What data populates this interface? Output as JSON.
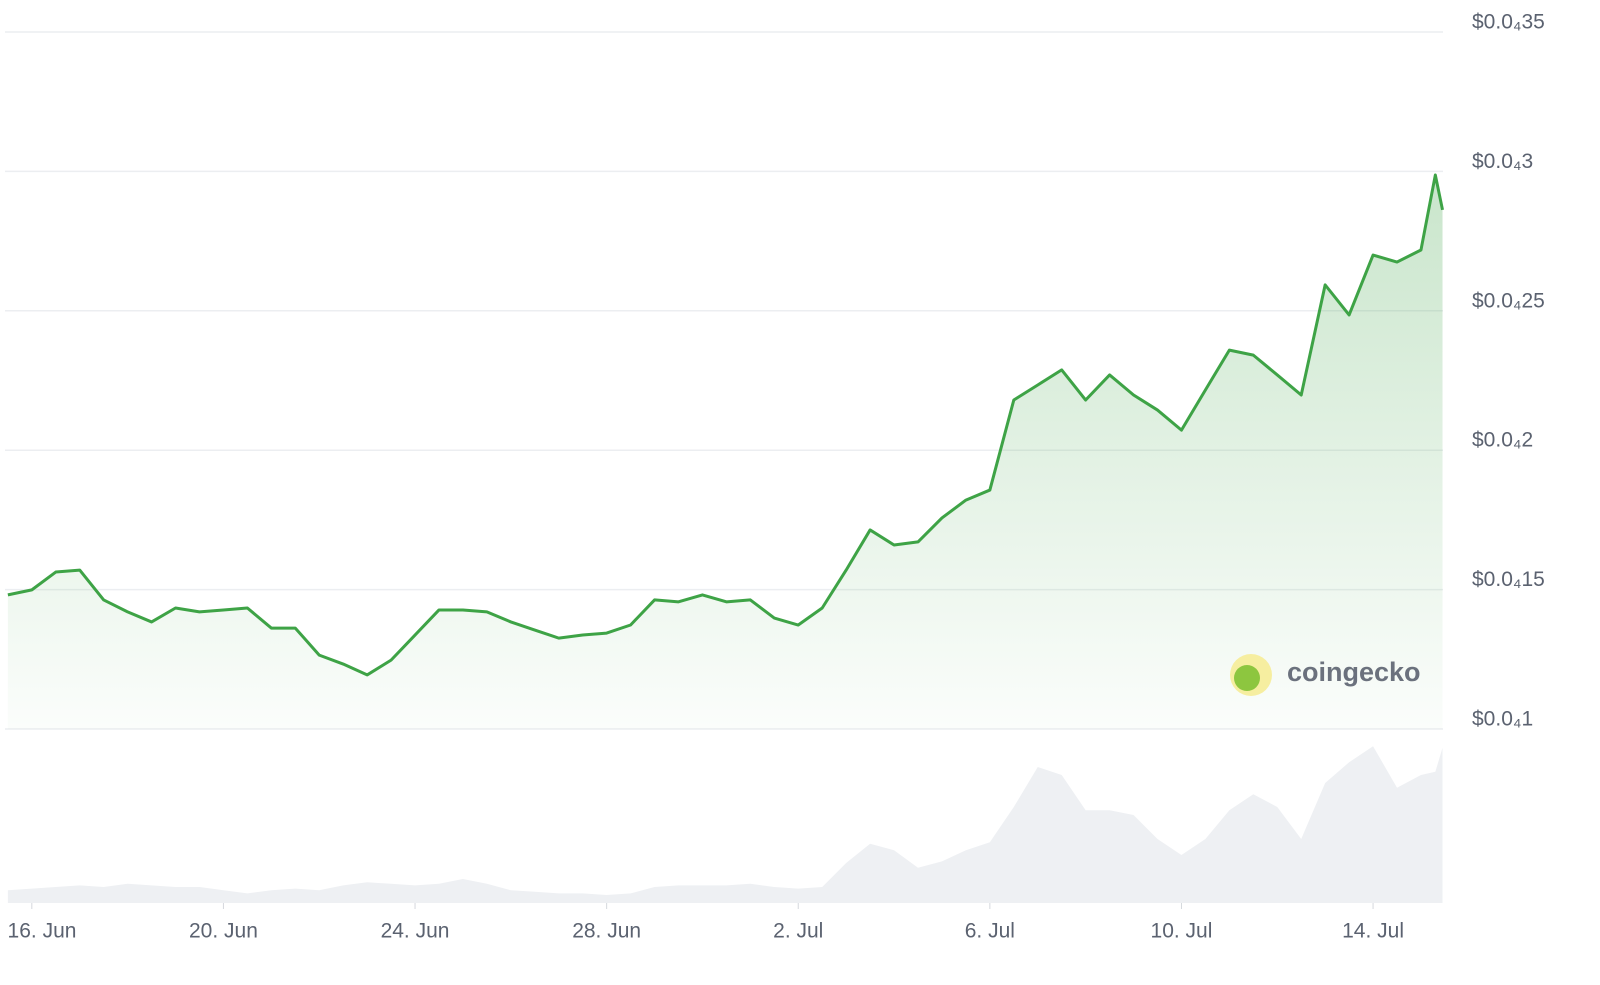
{
  "chart_data": {
    "type": "line",
    "x": [
      -0.5,
      0,
      0.5,
      1,
      1.5,
      2,
      2.5,
      3,
      3.5,
      4,
      4.5,
      5,
      5.5,
      6,
      6.5,
      7,
      7.5,
      8,
      8.5,
      9,
      9.5,
      10,
      10.5,
      11,
      11.5,
      12,
      12.5,
      13,
      13.5,
      14,
      14.5,
      15,
      15.5,
      16,
      16.5,
      17,
      17.5,
      18,
      18.5,
      19,
      19.5,
      20,
      20.5,
      21,
      21.5,
      22,
      22.5,
      23,
      23.5,
      24,
      24.5,
      25,
      25.5,
      26,
      26.5,
      27,
      27.5,
      28,
      28.5,
      29,
      29.3,
      29.45
    ],
    "series": [
      {
        "color": "#3ea346",
        "values": [
          1.481e-05,
          1.499e-05,
          1.563e-05,
          1.57e-05,
          1.463e-05,
          1.42e-05,
          1.384e-05,
          1.434e-05,
          1.42e-05,
          1.427e-05,
          1.434e-05,
          1.362e-05,
          1.362e-05,
          1.265e-05,
          1.233e-05,
          1.194e-05,
          1.247e-05,
          1.337e-05,
          1.427e-05,
          1.427e-05,
          1.42e-05,
          1.384e-05,
          1.355e-05,
          1.326e-05,
          1.337e-05,
          1.344e-05,
          1.373e-05,
          1.463e-05,
          1.456e-05,
          1.481e-05,
          1.456e-05,
          1.463e-05,
          1.398e-05,
          1.373e-05,
          1.434e-05,
          1.57e-05,
          1.714e-05,
          1.66e-05,
          1.671e-05,
          1.757e-05,
          1.821e-05,
          1.857e-05,
          2.18e-05,
          2.234e-05,
          2.288e-05,
          2.18e-05,
          2.27e-05,
          2.198e-05,
          2.144e-05,
          2.072e-05,
          2.216e-05,
          2.359e-05,
          2.341e-05,
          2.27e-05,
          2.198e-05,
          2.593e-05,
          2.485e-05,
          2.7e-05,
          2.675e-05,
          2.718e-05,
          2.987e-05,
          2.862e-05
        ]
      },
      {
        "axis": "y2",
        "color": "#eef0f3",
        "values": [
          8,
          9,
          10,
          11,
          10,
          12,
          11,
          10,
          10,
          8,
          6,
          8,
          9,
          8,
          11,
          13,
          12,
          11,
          12,
          15,
          12,
          8,
          7,
          6,
          6,
          5,
          6,
          10,
          11,
          11,
          11,
          12,
          10,
          9,
          10,
          25,
          37,
          33,
          22,
          26,
          33,
          38,
          60,
          85,
          80,
          58,
          58,
          55,
          40,
          30,
          40,
          58,
          68,
          60,
          40,
          75,
          88,
          98,
          72,
          80,
          82,
          97
        ]
      }
    ],
    "xlim": [
      -0.56,
      29.46
    ],
    "xticks": [
      {
        "value": 0,
        "label": "16. Jun"
      },
      {
        "value": 4,
        "label": "20. Jun"
      },
      {
        "value": 8,
        "label": "24. Jun"
      },
      {
        "value": 12,
        "label": "28. Jun"
      },
      {
        "value": 16,
        "label": "2. Jul"
      },
      {
        "value": 20,
        "label": "6. Jul"
      },
      {
        "value": 24,
        "label": "10. Jul"
      },
      {
        "value": 28,
        "label": "14. Jul"
      }
    ],
    "ylim": [
      1e-05,
      3.5e-05
    ],
    "yticks": [
      {
        "value": 1e-05,
        "label": "$0.0₄1"
      },
      {
        "value": 1.5e-05,
        "label": "$0.0₄15"
      },
      {
        "value": 2e-05,
        "label": "$0.0₄2"
      },
      {
        "value": 2.5e-05,
        "label": "$0.0₄25"
      },
      {
        "value": 3e-05,
        "label": "$0.0₄3"
      },
      {
        "value": 3.5e-05,
        "label": "$0.0₄35"
      }
    ],
    "y2lim": [
      0,
      100
    ],
    "grid": true,
    "watermark": "coingecko"
  }
}
